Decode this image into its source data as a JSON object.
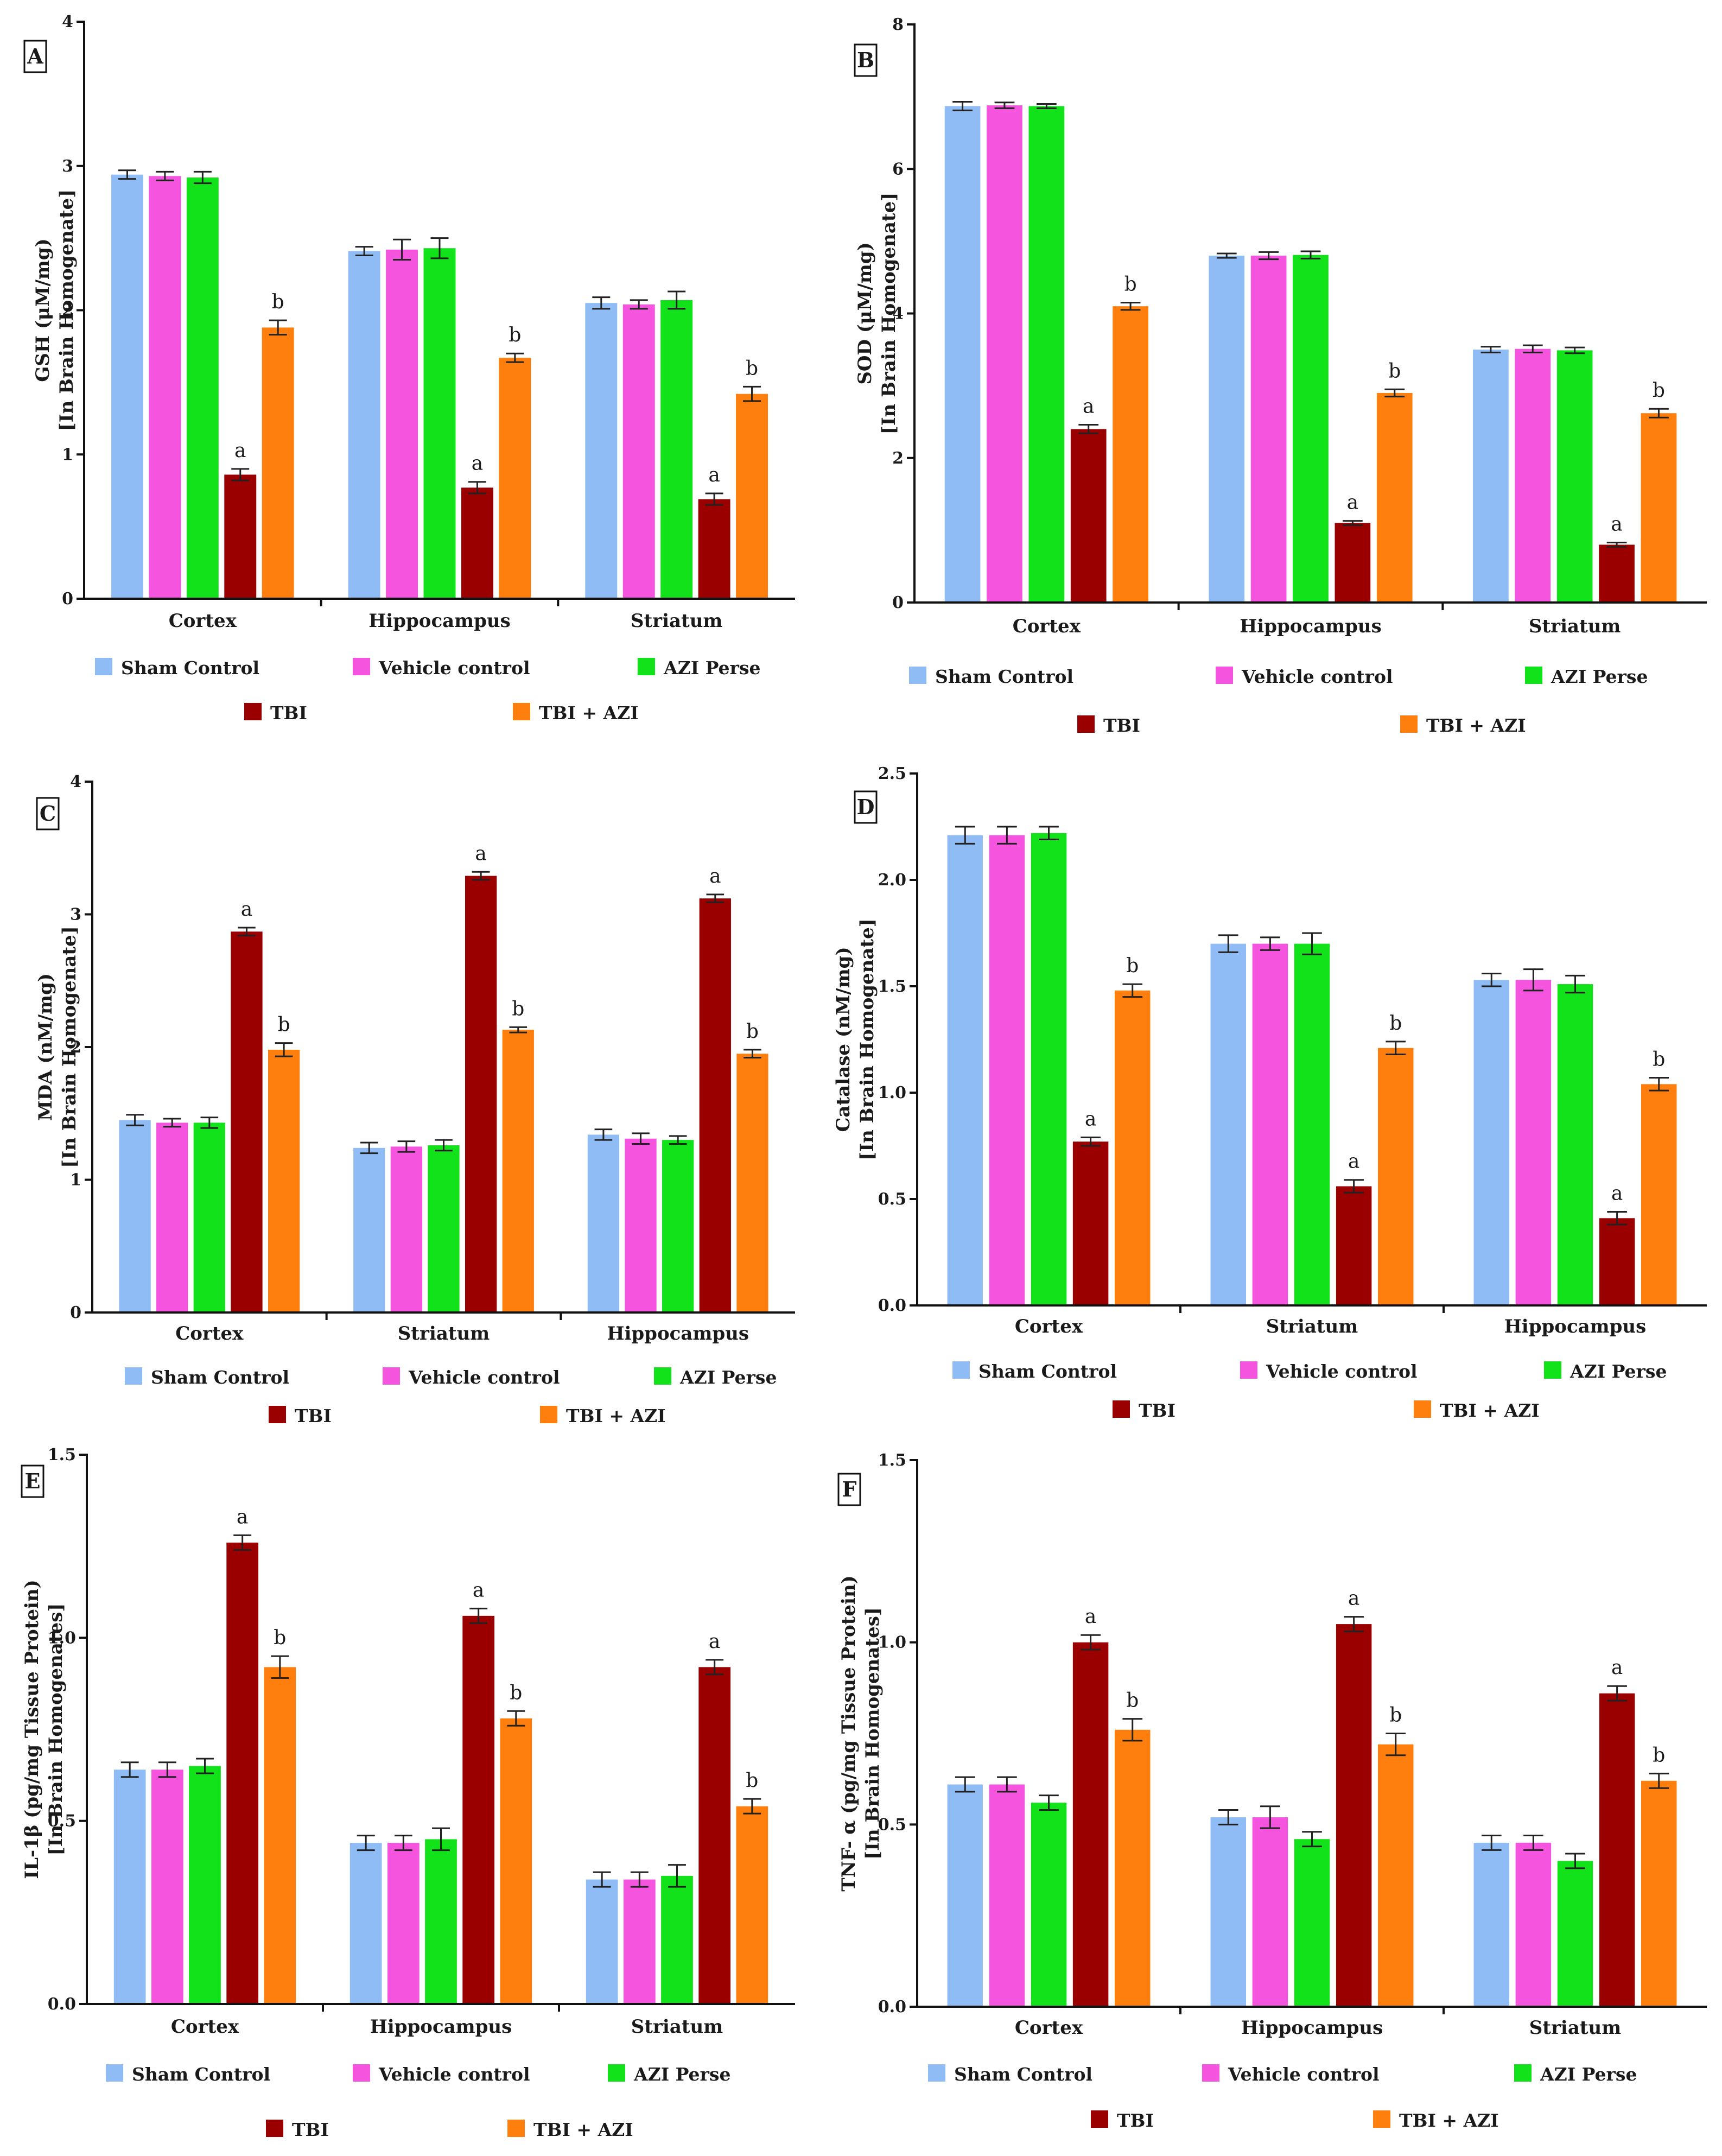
{
  "groups": [
    {
      "key": "sham",
      "label": "Sham Control",
      "color": "#8fbcf5"
    },
    {
      "key": "vehicle",
      "label": "Vehicle control",
      "color": "#f555de"
    },
    {
      "key": "azi",
      "label": "AZI Perse",
      "color": "#12e21a"
    },
    {
      "key": "tbi",
      "label": "TBI",
      "color": "#9b0000"
    },
    {
      "key": "tbiazi",
      "label": "TBI + AZI",
      "color": "#ff7f0e"
    }
  ],
  "chart_data": [
    {
      "panel": "A",
      "type": "bar",
      "ylabel_lines": [
        "GSH (μM/mg)",
        "[In Brain Homogenate]"
      ],
      "ylim": [
        0,
        4
      ],
      "yticks": [
        "0",
        "1",
        "2",
        "3",
        "4"
      ],
      "ytick_values": [
        0,
        1,
        2,
        3,
        4
      ],
      "categories": [
        "Cortex",
        "Hippocampus",
        "Striatum"
      ],
      "series": [
        {
          "name": "Sham Control",
          "values": [
            2.94,
            2.41,
            2.05
          ],
          "errors": [
            0.03,
            0.03,
            0.04
          ]
        },
        {
          "name": "Vehicle control",
          "values": [
            2.93,
            2.42,
            2.04
          ],
          "errors": [
            0.03,
            0.07,
            0.03
          ]
        },
        {
          "name": "AZI Perse",
          "values": [
            2.92,
            2.43,
            2.07
          ],
          "errors": [
            0.04,
            0.07,
            0.06
          ]
        },
        {
          "name": "TBI",
          "values": [
            0.86,
            0.77,
            0.69
          ],
          "errors": [
            0.04,
            0.04,
            0.04
          ],
          "annotations": [
            "a",
            "a",
            "a"
          ]
        },
        {
          "name": "TBI + AZI",
          "values": [
            1.88,
            1.67,
            1.42
          ],
          "errors": [
            0.05,
            0.03,
            0.05
          ],
          "annotations": [
            "b",
            "b",
            "b"
          ]
        }
      ]
    },
    {
      "panel": "B",
      "type": "bar",
      "ylabel_lines": [
        "SOD (μM/mg)",
        "[In Brain Homogenate]"
      ],
      "ylim": [
        0,
        8
      ],
      "yticks": [
        "0",
        "2",
        "4",
        "6",
        "8"
      ],
      "ytick_values": [
        0,
        2,
        4,
        6,
        8
      ],
      "categories": [
        "Cortex",
        "Hippocampus",
        "Striatum"
      ],
      "series": [
        {
          "name": "Sham Control",
          "values": [
            6.87,
            4.8,
            3.5
          ],
          "errors": [
            0.06,
            0.03,
            0.04
          ]
        },
        {
          "name": "Vehicle control",
          "values": [
            6.88,
            4.8,
            3.51
          ],
          "errors": [
            0.04,
            0.05,
            0.05
          ]
        },
        {
          "name": "AZI Perse",
          "values": [
            6.87,
            4.81,
            3.49
          ],
          "errors": [
            0.03,
            0.05,
            0.04
          ]
        },
        {
          "name": "TBI",
          "values": [
            2.4,
            1.1,
            0.8
          ],
          "errors": [
            0.06,
            0.03,
            0.03
          ],
          "annotations": [
            "a",
            "a",
            "a"
          ]
        },
        {
          "name": "TBI + AZI",
          "values": [
            4.1,
            2.9,
            2.62
          ],
          "errors": [
            0.05,
            0.05,
            0.06
          ],
          "annotations": [
            "b",
            "b",
            "b"
          ]
        }
      ]
    },
    {
      "panel": "C",
      "type": "bar",
      "ylabel_lines": [
        "MDA (nM/mg)",
        "[In Brain Homogenate]"
      ],
      "ylim": [
        0,
        4
      ],
      "yticks": [
        "0",
        "1",
        "2",
        "3",
        "4"
      ],
      "ytick_values": [
        0,
        1,
        2,
        3,
        4
      ],
      "categories": [
        "Cortex",
        "Striatum",
        "Hippocampus"
      ],
      "series": [
        {
          "name": "Sham Control",
          "values": [
            1.45,
            1.24,
            1.34
          ],
          "errors": [
            0.04,
            0.04,
            0.04
          ]
        },
        {
          "name": "Vehicle control",
          "values": [
            1.43,
            1.25,
            1.31
          ],
          "errors": [
            0.03,
            0.04,
            0.04
          ]
        },
        {
          "name": "AZI Perse",
          "values": [
            1.43,
            1.26,
            1.3
          ],
          "errors": [
            0.04,
            0.04,
            0.03
          ]
        },
        {
          "name": "TBI",
          "values": [
            2.87,
            3.29,
            3.12
          ],
          "errors": [
            0.03,
            0.03,
            0.03
          ],
          "annotations": [
            "a",
            "a",
            "a"
          ]
        },
        {
          "name": "TBI + AZI",
          "values": [
            1.98,
            2.13,
            1.95
          ],
          "errors": [
            0.05,
            0.02,
            0.03
          ],
          "annotations": [
            "b",
            "b",
            "b"
          ]
        }
      ]
    },
    {
      "panel": "D",
      "type": "bar",
      "ylabel_lines": [
        "Catalase (nM/mg)",
        "[In Brain Homogenate]"
      ],
      "ylim": [
        0,
        2.5
      ],
      "yticks": [
        "0.0",
        "0.5",
        "1.0",
        "1.5",
        "2.0",
        "2.5"
      ],
      "ytick_values": [
        0,
        0.5,
        1,
        1.5,
        2,
        2.5
      ],
      "categories": [
        "Cortex",
        "Striatum",
        "Hippocampus"
      ],
      "series": [
        {
          "name": "Sham Control",
          "values": [
            2.21,
            1.7,
            1.53
          ],
          "errors": [
            0.04,
            0.04,
            0.03
          ]
        },
        {
          "name": "Vehicle control",
          "values": [
            2.21,
            1.7,
            1.53
          ],
          "errors": [
            0.04,
            0.03,
            0.05
          ]
        },
        {
          "name": "AZI Perse",
          "values": [
            2.22,
            1.7,
            1.51
          ],
          "errors": [
            0.03,
            0.05,
            0.04
          ]
        },
        {
          "name": "TBI",
          "values": [
            0.77,
            0.56,
            0.41
          ],
          "errors": [
            0.02,
            0.03,
            0.03
          ],
          "annotations": [
            "a",
            "a",
            "a"
          ]
        },
        {
          "name": "TBI + AZI",
          "values": [
            1.48,
            1.21,
            1.04
          ],
          "errors": [
            0.03,
            0.03,
            0.03
          ],
          "annotations": [
            "b",
            "b",
            "b"
          ]
        }
      ]
    },
    {
      "panel": "E",
      "type": "bar",
      "ylabel_lines": [
        "IL-1β  (pg/mg Tissue Protein)",
        "[In Brain Homogenates]"
      ],
      "ylim": [
        0,
        1.5
      ],
      "yticks": [
        "0.0",
        "0.5",
        "1.0",
        "1.5"
      ],
      "ytick_values": [
        0,
        0.5,
        1,
        1.5
      ],
      "categories": [
        "Cortex",
        "Hippocampus",
        "Striatum"
      ],
      "series": [
        {
          "name": "Sham Control",
          "values": [
            0.64,
            0.44,
            0.34
          ],
          "errors": [
            0.02,
            0.02,
            0.02
          ]
        },
        {
          "name": "Vehicle control",
          "values": [
            0.64,
            0.44,
            0.34
          ],
          "errors": [
            0.02,
            0.02,
            0.02
          ]
        },
        {
          "name": "AZI Perse",
          "values": [
            0.65,
            0.45,
            0.35
          ],
          "errors": [
            0.02,
            0.03,
            0.03
          ]
        },
        {
          "name": "TBI",
          "values": [
            1.26,
            1.06,
            0.92
          ],
          "errors": [
            0.02,
            0.02,
            0.02
          ],
          "annotations": [
            "a",
            "a",
            "a"
          ]
        },
        {
          "name": "TBI + AZI",
          "values": [
            0.92,
            0.78,
            0.54
          ],
          "errors": [
            0.03,
            0.02,
            0.02
          ],
          "annotations": [
            "b",
            "b",
            "b"
          ]
        }
      ]
    },
    {
      "panel": "F",
      "type": "bar",
      "ylabel_lines": [
        "TNF- α (pg/mg Tissue Protein)",
        "[In Brain Homogenates]"
      ],
      "ylim": [
        0,
        1.5
      ],
      "yticks": [
        "0.0",
        "0.5",
        "1.0",
        "1.5"
      ],
      "ytick_values": [
        0,
        0.5,
        1,
        1.5
      ],
      "categories": [
        "Cortex",
        "Hippocampus",
        "Striatum"
      ],
      "series": [
        {
          "name": "Sham Control",
          "values": [
            0.61,
            0.52,
            0.45
          ],
          "errors": [
            0.02,
            0.02,
            0.02
          ]
        },
        {
          "name": "Vehicle control",
          "values": [
            0.61,
            0.52,
            0.45
          ],
          "errors": [
            0.02,
            0.03,
            0.02
          ]
        },
        {
          "name": "AZI Perse",
          "values": [
            0.56,
            0.46,
            0.4
          ],
          "errors": [
            0.02,
            0.02,
            0.02
          ]
        },
        {
          "name": "TBI",
          "values": [
            1.0,
            1.05,
            0.86
          ],
          "errors": [
            0.02,
            0.02,
            0.02
          ],
          "annotations": [
            "a",
            "a",
            "a"
          ]
        },
        {
          "name": "TBI + AZI",
          "values": [
            0.76,
            0.72,
            0.62
          ],
          "errors": [
            0.03,
            0.03,
            0.02
          ],
          "annotations": [
            "b",
            "b",
            "b"
          ]
        }
      ]
    }
  ]
}
